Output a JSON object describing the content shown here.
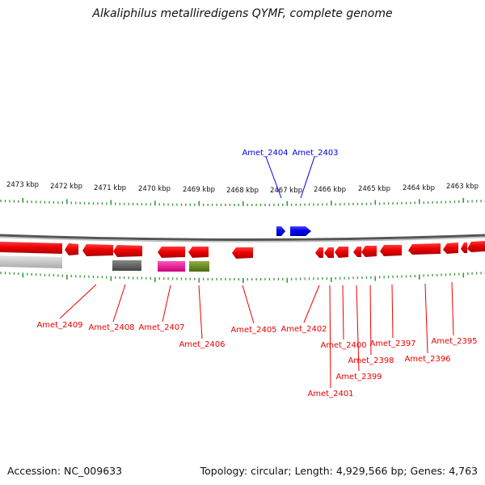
{
  "title": "Alkaliphilus metalliredigens QYMF, complete genome",
  "footer": {
    "accession": "Accession: NC_009633",
    "summary": "Topology: circular; Length: 4,929,566 bp; Genes: 4,763"
  },
  "scale_labels": [
    "2473 kbp",
    "2472 kbp",
    "2471 kbp",
    "2470 kbp",
    "2469 kbp",
    "2468 kbp",
    "2467 kbp",
    "2466 kbp",
    "2465 kbp",
    "2464 kbp",
    "2463 kbp"
  ],
  "genes_top": [
    "Amet_2404",
    "Amet_2403"
  ],
  "genes_bottom": [
    "Amet_2409",
    "Amet_2408",
    "Amet_2407",
    "Amet_2406",
    "Amet_2405",
    "Amet_2402",
    "Amet_2401",
    "Amet_2400",
    "Amet_2399",
    "Amet_2398",
    "Amet_2397",
    "Amet_2396",
    "Amet_2395"
  ],
  "colors": {
    "forward_gene": "#0000ee",
    "reverse_gene": "#ee0000",
    "tick": "#339933",
    "backbone": "#888888",
    "feature_gray_light": "#c8c8c8",
    "feature_gray_dark": "#666666",
    "feature_magenta": "#ee2299",
    "feature_olive": "#6b8e23"
  }
}
